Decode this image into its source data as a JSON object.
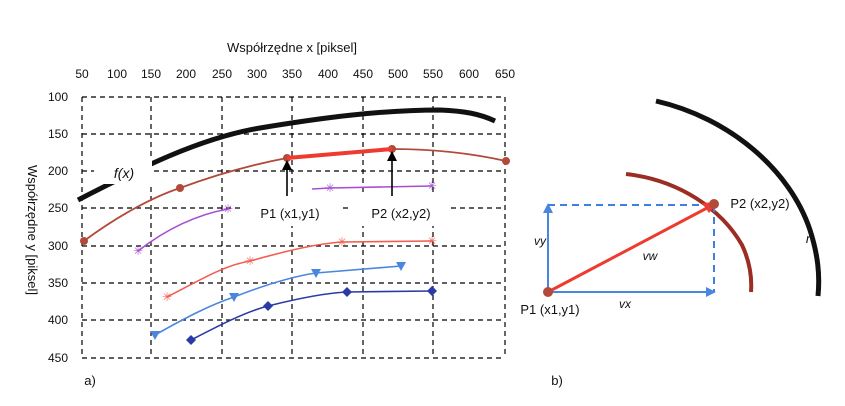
{
  "panel_a": {
    "x_axis_title": "Współrzędne x [piksel]",
    "y_axis_title": "Współrzędne y [piksel]",
    "x_ticks": [
      "50",
      "100",
      "150",
      "200",
      "250",
      "300",
      "350",
      "400",
      "450",
      "500",
      "550",
      "600",
      "650"
    ],
    "y_ticks": [
      "100",
      "150",
      "200",
      "250",
      "300",
      "350",
      "400",
      "450"
    ],
    "curve_label": "f(x)",
    "p1_label": "P1 (x1,y1)",
    "p2_label": "P2 (x2,y2)",
    "panel_label": "a)"
  },
  "panel_b": {
    "p1_label": "P1 (x1,y1)",
    "p2_label": "P2 (x2,y2)",
    "vx_label": "vx",
    "vy_label": "vy",
    "vw_label": "vw",
    "r_label": "r",
    "panel_label": "b)"
  },
  "colors": {
    "black_curve": "#111111",
    "brown_curve": "#b24a3a",
    "red": "#ee3b30",
    "purple": "#a64fd1",
    "salmon": "#f35c50",
    "blue": "#4a86e0",
    "navy": "#2b3aa6",
    "dashed_blue": "#3f7fe0"
  }
}
